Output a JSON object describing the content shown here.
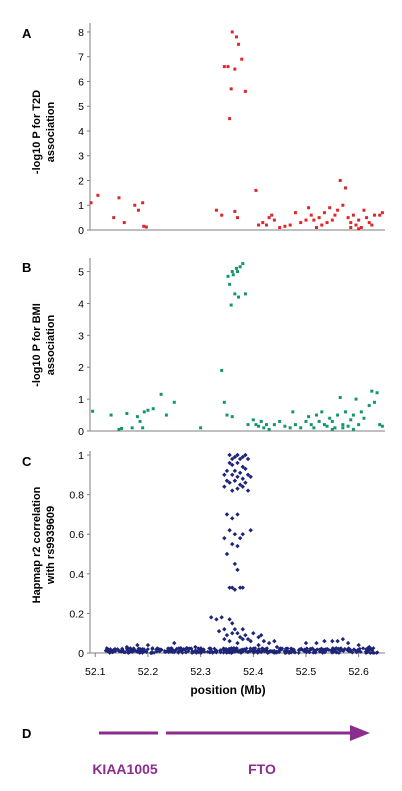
{
  "colors": {
    "panel_a": "#e0252a",
    "panel_b": "#13976a",
    "panel_c": "#1e2477",
    "gene": "#8b2c8f",
    "axis": "#7f7f7f"
  },
  "xaxis": {
    "label": "position (Mb)",
    "ticks": [
      "52.1",
      "52.2",
      "52.3",
      "52.4",
      "52.5",
      "52.6"
    ]
  },
  "panels": {
    "a": {
      "letter": "A",
      "ylabel_line1": "-log10 P for T2D",
      "ylabel_line2": "association",
      "yticks": [
        "0",
        "1",
        "2",
        "3",
        "4",
        "5",
        "6",
        "7",
        "8"
      ]
    },
    "b": {
      "letter": "B",
      "ylabel_line1": "-log10 P for BMI",
      "ylabel_line2": "association",
      "yticks": [
        "0",
        "1",
        "2",
        "3",
        "4",
        "5"
      ]
    },
    "c": {
      "letter": "C",
      "ylabel_line1": "Hapmap r2 correlation",
      "ylabel_line2": "with rs9939609",
      "yticks": [
        "0",
        "0.2",
        "0.4",
        "0.6",
        "0.8",
        "1"
      ]
    },
    "d": {
      "letter": "D",
      "gene1": "KIAA1005",
      "gene2": "FTO"
    }
  },
  "chart_data": [
    {
      "type": "scatter",
      "panel": "A",
      "xlim": [
        52.09,
        52.65
      ],
      "ylim": [
        0,
        8.2
      ],
      "ylabel": "-log10 P for T2D association",
      "points": [
        [
          52.092,
          1.1
        ],
        [
          52.105,
          1.4
        ],
        [
          52.135,
          0.5
        ],
        [
          52.145,
          1.3
        ],
        [
          52.155,
          0.3
        ],
        [
          52.175,
          1.0
        ],
        [
          52.182,
          0.8
        ],
        [
          52.19,
          1.1
        ],
        [
          52.192,
          0.15
        ],
        [
          52.197,
          0.12
        ],
        [
          52.33,
          0.8
        ],
        [
          52.34,
          0.6
        ],
        [
          52.345,
          6.6
        ],
        [
          52.352,
          6.6
        ],
        [
          52.355,
          4.5
        ],
        [
          52.358,
          5.7
        ],
        [
          52.36,
          8.0
        ],
        [
          52.365,
          6.5
        ],
        [
          52.368,
          7.8
        ],
        [
          52.372,
          7.5
        ],
        [
          52.378,
          6.9
        ],
        [
          52.385,
          5.6
        ],
        [
          52.365,
          0.75
        ],
        [
          52.37,
          0.5
        ],
        [
          52.405,
          1.6
        ],
        [
          52.41,
          0.2
        ],
        [
          52.418,
          0.3
        ],
        [
          52.425,
          0.2
        ],
        [
          52.43,
          0.5
        ],
        [
          52.435,
          0.6
        ],
        [
          52.44,
          0.4
        ],
        [
          52.45,
          0.1
        ],
        [
          52.46,
          0.15
        ],
        [
          52.47,
          0.2
        ],
        [
          52.48,
          0.7
        ],
        [
          52.49,
          0.3
        ],
        [
          52.5,
          0.4
        ],
        [
          52.505,
          0.9
        ],
        [
          52.51,
          0.6
        ],
        [
          52.515,
          0.4
        ],
        [
          52.52,
          0.1
        ],
        [
          52.525,
          0.5
        ],
        [
          52.53,
          0.2
        ],
        [
          52.535,
          0.7
        ],
        [
          52.54,
          0.3
        ],
        [
          52.545,
          0.9
        ],
        [
          52.55,
          0.4
        ],
        [
          52.555,
          0.6
        ],
        [
          52.56,
          0.8
        ],
        [
          52.565,
          2.0
        ],
        [
          52.57,
          1.0
        ],
        [
          52.575,
          1.7
        ],
        [
          52.58,
          0.5
        ],
        [
          52.585,
          0.3
        ],
        [
          52.59,
          0.6
        ],
        [
          52.595,
          0.2
        ],
        [
          52.6,
          0.4
        ],
        [
          52.605,
          0.1
        ],
        [
          52.61,
          0.8
        ],
        [
          52.615,
          0.5
        ],
        [
          52.62,
          0.3
        ],
        [
          52.625,
          0.2
        ],
        [
          52.63,
          0.6
        ],
        [
          52.64,
          0.6
        ],
        [
          52.645,
          0.7
        ],
        [
          52.585,
          0.1
        ],
        [
          52.6,
          0.05
        ]
      ]
    },
    {
      "type": "scatter",
      "panel": "B",
      "xlim": [
        52.09,
        52.65
      ],
      "ylim": [
        0,
        5.3
      ],
      "ylabel": "-log10 P for BMI association",
      "points": [
        [
          52.095,
          0.62
        ],
        [
          52.13,
          0.5
        ],
        [
          52.145,
          0.05
        ],
        [
          52.15,
          0.08
        ],
        [
          52.16,
          0.55
        ],
        [
          52.17,
          0.1
        ],
        [
          52.18,
          0.45
        ],
        [
          52.185,
          0.3
        ],
        [
          52.19,
          0.1
        ],
        [
          52.193,
          0.6
        ],
        [
          52.2,
          0.65
        ],
        [
          52.21,
          0.7
        ],
        [
          52.225,
          1.15
        ],
        [
          52.235,
          0.5
        ],
        [
          52.25,
          0.9
        ],
        [
          52.3,
          0.1
        ],
        [
          52.34,
          1.9
        ],
        [
          52.345,
          0.9
        ],
        [
          52.35,
          0.5
        ],
        [
          52.352,
          4.85
        ],
        [
          52.355,
          4.6
        ],
        [
          52.36,
          5.0
        ],
        [
          52.362,
          4.9
        ],
        [
          52.365,
          4.3
        ],
        [
          52.368,
          5.1
        ],
        [
          52.37,
          5.0
        ],
        [
          52.372,
          4.2
        ],
        [
          52.375,
          5.15
        ],
        [
          52.38,
          5.25
        ],
        [
          52.385,
          4.3
        ],
        [
          52.358,
          3.95
        ],
        [
          52.36,
          0.45
        ],
        [
          52.39,
          0.2
        ],
        [
          52.4,
          0.35
        ],
        [
          52.405,
          0.2
        ],
        [
          52.41,
          0.15
        ],
        [
          52.415,
          0.3
        ],
        [
          52.42,
          0.1
        ],
        [
          52.425,
          0.2
        ],
        [
          52.43,
          0.05
        ],
        [
          52.44,
          0.2
        ],
        [
          52.45,
          0.3
        ],
        [
          52.46,
          0.15
        ],
        [
          52.47,
          0.1
        ],
        [
          52.475,
          0.6
        ],
        [
          52.48,
          0.2
        ],
        [
          52.49,
          0.1
        ],
        [
          52.5,
          0.3
        ],
        [
          52.505,
          0.45
        ],
        [
          52.51,
          0.2
        ],
        [
          52.515,
          0.1
        ],
        [
          52.52,
          0.5
        ],
        [
          52.525,
          0.3
        ],
        [
          52.53,
          0.6
        ],
        [
          52.535,
          0.2
        ],
        [
          52.54,
          0.15
        ],
        [
          52.545,
          0.4
        ],
        [
          52.55,
          0.3
        ],
        [
          52.555,
          0.1
        ],
        [
          52.56,
          0.5
        ],
        [
          52.565,
          1.05
        ],
        [
          52.57,
          0.2
        ],
        [
          52.575,
          0.6
        ],
        [
          52.58,
          0.15
        ],
        [
          52.585,
          0.35
        ],
        [
          52.59,
          0.5
        ],
        [
          52.595,
          1.0
        ],
        [
          52.6,
          0.2
        ],
        [
          52.605,
          0.6
        ],
        [
          52.61,
          0.4
        ],
        [
          52.62,
          0.8
        ],
        [
          52.625,
          1.25
        ],
        [
          52.63,
          0.9
        ],
        [
          52.635,
          1.2
        ],
        [
          52.64,
          0.2
        ],
        [
          52.645,
          0.15
        ],
        [
          52.55,
          0.05
        ],
        [
          52.57,
          0.1
        ],
        [
          52.59,
          0.05
        ]
      ]
    },
    {
      "type": "scatter",
      "panel": "C",
      "xlim": [
        52.09,
        52.65
      ],
      "ylim": [
        0,
        1.0
      ],
      "ylabel": "Hapmap r2 correlation with rs9939609",
      "points": [
        [
          52.355,
          1.0
        ],
        [
          52.36,
          0.98
        ],
        [
          52.365,
          0.99
        ],
        [
          52.37,
          1.0
        ],
        [
          52.375,
          0.98
        ],
        [
          52.38,
          0.99
        ],
        [
          52.385,
          1.0
        ],
        [
          52.39,
          0.98
        ],
        [
          52.355,
          0.96
        ],
        [
          52.36,
          0.95
        ],
        [
          52.37,
          0.96
        ],
        [
          52.38,
          0.94
        ],
        [
          52.385,
          0.93
        ],
        [
          52.35,
          0.92
        ],
        [
          52.365,
          0.92
        ],
        [
          52.375,
          0.91
        ],
        [
          52.39,
          0.9
        ],
        [
          52.345,
          0.9
        ],
        [
          52.36,
          0.9
        ],
        [
          52.37,
          0.89
        ],
        [
          52.38,
          0.88
        ],
        [
          52.395,
          0.89
        ],
        [
          52.35,
          0.87
        ],
        [
          52.355,
          0.86
        ],
        [
          52.365,
          0.87
        ],
        [
          52.375,
          0.85
        ],
        [
          52.385,
          0.86
        ],
        [
          52.345,
          0.84
        ],
        [
          52.37,
          0.83
        ],
        [
          52.38,
          0.84
        ],
        [
          52.39,
          0.82
        ],
        [
          52.36,
          0.82
        ],
        [
          52.35,
          0.7
        ],
        [
          52.36,
          0.68
        ],
        [
          52.37,
          0.7
        ],
        [
          52.355,
          0.62
        ],
        [
          52.365,
          0.6
        ],
        [
          52.375,
          0.58
        ],
        [
          52.38,
          0.6
        ],
        [
          52.345,
          0.58
        ],
        [
          52.36,
          0.55
        ],
        [
          52.37,
          0.54
        ],
        [
          52.35,
          0.5
        ],
        [
          52.395,
          0.62
        ],
        [
          52.365,
          0.45
        ],
        [
          52.37,
          0.42
        ],
        [
          52.355,
          0.33
        ],
        [
          52.36,
          0.33
        ],
        [
          52.365,
          0.32
        ],
        [
          52.375,
          0.33
        ],
        [
          52.38,
          0.33
        ],
        [
          52.34,
          0.18
        ],
        [
          52.345,
          0.12
        ],
        [
          52.355,
          0.17
        ],
        [
          52.36,
          0.15
        ],
        [
          52.365,
          0.12
        ],
        [
          52.37,
          0.1
        ],
        [
          52.375,
          0.08
        ],
        [
          52.38,
          0.12
        ],
        [
          52.385,
          0.09
        ],
        [
          52.39,
          0.07
        ],
        [
          52.395,
          0.06
        ],
        [
          52.4,
          0.1
        ],
        [
          52.41,
          0.08
        ],
        [
          52.32,
          0.18
        ],
        [
          52.33,
          0.17
        ],
        [
          52.335,
          0.11
        ],
        [
          52.345,
          0.07
        ],
        [
          52.35,
          0.09
        ],
        [
          52.355,
          0.06
        ],
        [
          52.36,
          0.1
        ],
        [
          52.37,
          0.05
        ],
        [
          52.38,
          0.07
        ],
        [
          52.41,
          0.04
        ],
        [
          52.415,
          0.09
        ],
        [
          52.42,
          0.06
        ],
        [
          52.43,
          0.05
        ],
        [
          52.44,
          0.06
        ],
        [
          52.445,
          0.03
        ],
        [
          52.55,
          0.06
        ],
        [
          52.56,
          0.06
        ],
        [
          52.57,
          0.07
        ],
        [
          52.58,
          0.05
        ],
        [
          52.6,
          0.04
        ],
        [
          52.62,
          0.03
        ],
        [
          52.25,
          0.05
        ],
        [
          52.2,
          0.04
        ],
        [
          52.16,
          0.03
        ],
        [
          52.18,
          0.04
        ],
        [
          52.29,
          0.03
        ],
        [
          52.5,
          0.05
        ],
        [
          52.52,
          0.05
        ],
        [
          52.535,
          0.06
        ]
      ]
    }
  ]
}
